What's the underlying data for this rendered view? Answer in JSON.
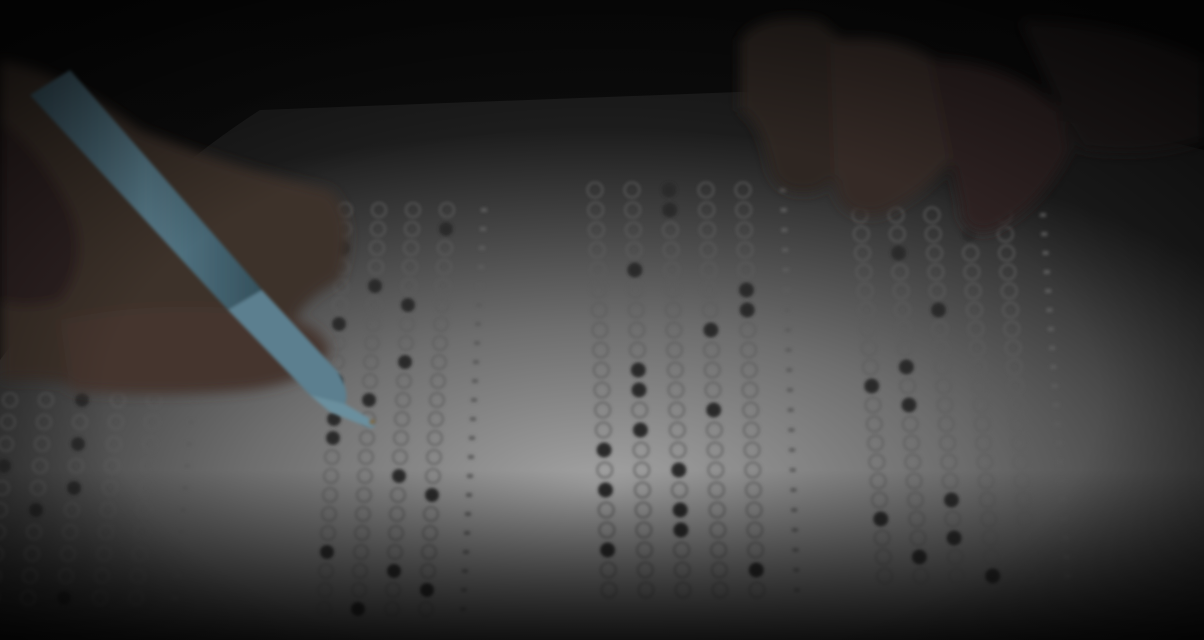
{
  "image": {
    "kind": "photograph",
    "subject": "answer-sheet",
    "objects": [
      "hand",
      "pen",
      "answer-sheet",
      "bubbles",
      "fingers"
    ]
  },
  "colors": {
    "background": "#111111",
    "paper_light": "#9a9a9a",
    "paper_dark": "#2a2a2a",
    "bubble_outline": "#5b5b5b",
    "bubble_filled": "#2c2c2c",
    "pen_body": "#4f6f7e",
    "skin": "#4a3a33",
    "vignette": "#0d0d0d"
  }
}
